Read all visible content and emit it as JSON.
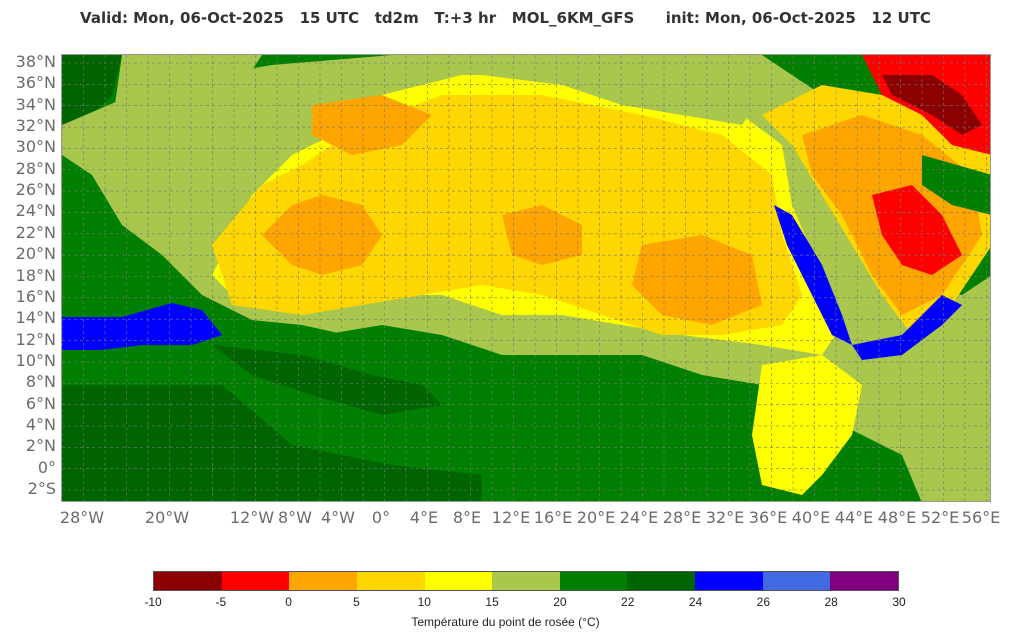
{
  "header": {
    "title": "Valid: Mon, 06-Oct-2025   15 UTC   td2m   T:+3 hr   MOL_6KM_GFS      init: Mon, 06-Oct-2025   12 UTC"
  },
  "map": {
    "lat_labels": [
      "38°N",
      "36°N",
      "34°N",
      "32°N",
      "30°N",
      "28°N",
      "26°N",
      "24°N",
      "22°N",
      "20°N",
      "18°N",
      "16°N",
      "14°N",
      "12°N",
      "10°N",
      "8°N",
      "6°N",
      "4°N",
      "2°N",
      "0°",
      "2°S"
    ],
    "lon_labels": [
      "28°W",
      "20°W",
      "12°W",
      "8°W",
      "4°W",
      "0°",
      "4°E",
      "8°E",
      "12°E",
      "16°E",
      "20°E",
      "24°E",
      "28°E",
      "32°E",
      "36°E",
      "40°E",
      "44°E",
      "48°E",
      "52°E",
      "56°E"
    ],
    "colors": {
      "red_dark": "#8b0000",
      "red": "#ff0000",
      "orange": "#ffa500",
      "gold": "#ffd700",
      "yellow": "#ffff00",
      "lightgreen": "#a9c74d",
      "green": "#007f00",
      "darkgreen": "#006400",
      "blue": "#0000ff",
      "royalblue": "#4169e1",
      "purple": "#800080"
    }
  },
  "colorbar": {
    "colors": [
      "#8b0000",
      "#ff0000",
      "#ffa500",
      "#ffd700",
      "#ffff00",
      "#a9c74d",
      "#007f00",
      "#006400",
      "#0000ff",
      "#4169e1",
      "#800080"
    ],
    "ticks": [
      "-10",
      "-5",
      "0",
      "5",
      "10",
      "15",
      "20",
      "22",
      "24",
      "26",
      "28",
      "30"
    ],
    "label": "Température du point de rosée (°C)"
  }
}
